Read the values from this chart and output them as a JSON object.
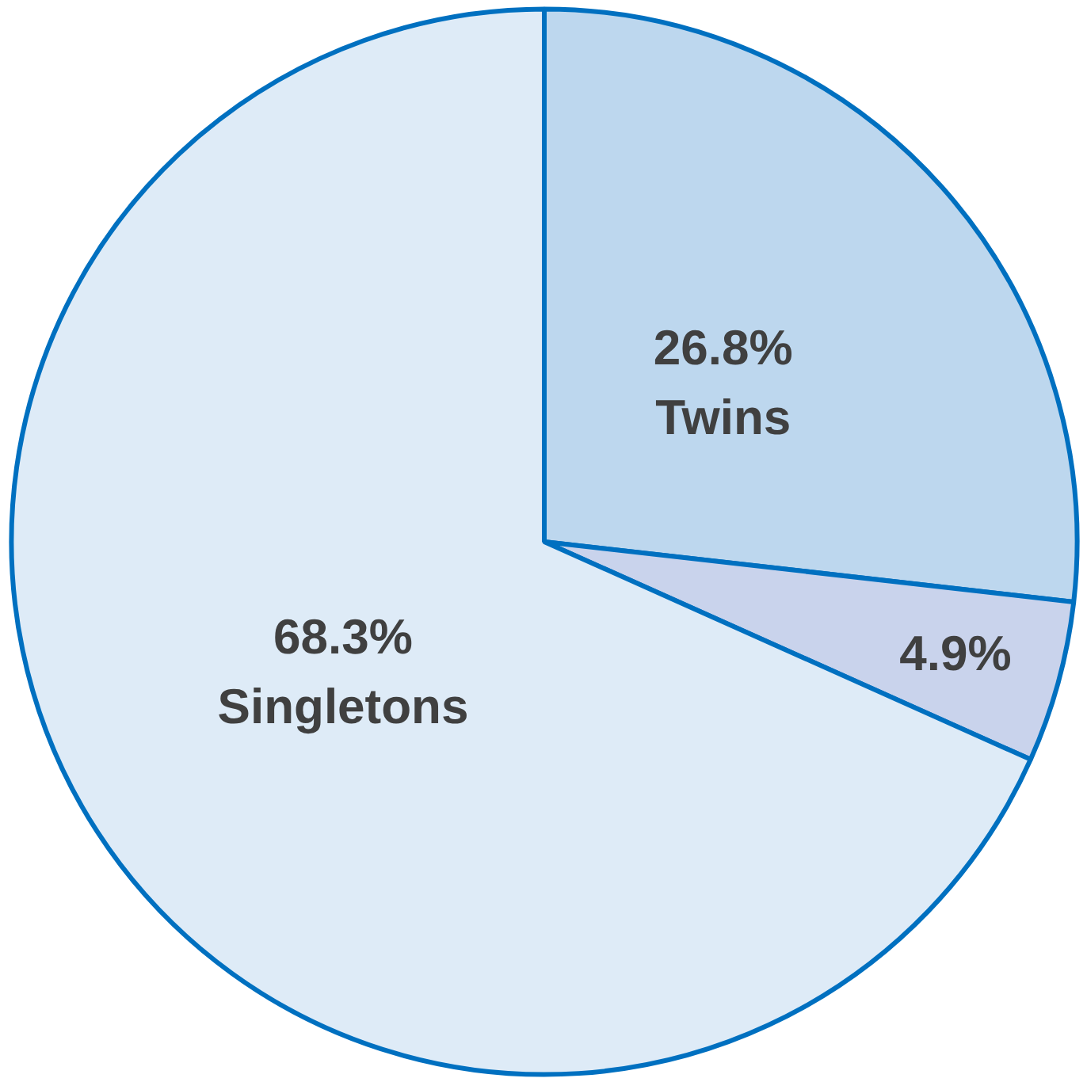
{
  "chart_data": {
    "type": "pie",
    "categories": [
      "Twins",
      null,
      "Singletons"
    ],
    "values": [
      26.8,
      4.9,
      68.3
    ],
    "colors": [
      "#bdd7ee",
      "#c9d3ec",
      "#deebf7"
    ],
    "value_labels": [
      "26.8%",
      "4.9%",
      "68.3%"
    ]
  }
}
